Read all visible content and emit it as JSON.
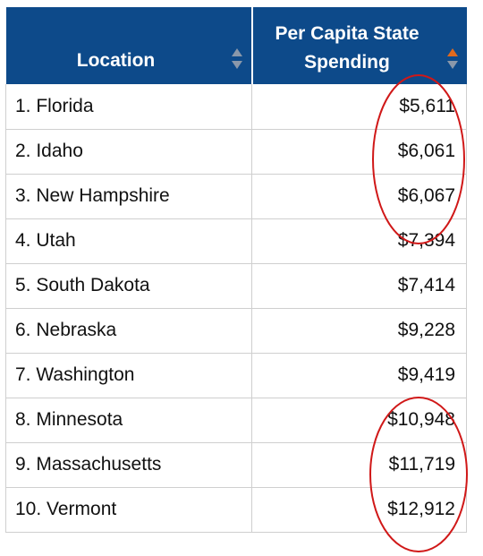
{
  "table": {
    "headers": {
      "location": "Location",
      "spending_line1": "Per Capita State",
      "spending_line2": "Spending"
    },
    "sort": {
      "location": "none",
      "spending": "ascending"
    },
    "rows": [
      {
        "location": "1. Florida",
        "spending": "$5,611"
      },
      {
        "location": "2. Idaho",
        "spending": "$6,061"
      },
      {
        "location": "3. New Hampshire",
        "spending": "$6,067"
      },
      {
        "location": "4. Utah",
        "spending": "$7,394"
      },
      {
        "location": "5. South Dakota",
        "spending": "$7,414"
      },
      {
        "location": "6. Nebraska",
        "spending": "$9,228"
      },
      {
        "location": "7. Washington",
        "spending": "$9,419"
      },
      {
        "location": "8. Minnesota",
        "spending": "$10,948"
      },
      {
        "location": "9. Massachusetts",
        "spending": "$11,719"
      },
      {
        "location": "10. Vermont",
        "spending": "$12,912"
      }
    ]
  },
  "colors": {
    "header_bg": "#0d4a8a",
    "header_text": "#ffffff",
    "sort_inactive": "#8a98aa",
    "sort_active": "#e06a1e",
    "annotation_circle": "#d01818"
  }
}
